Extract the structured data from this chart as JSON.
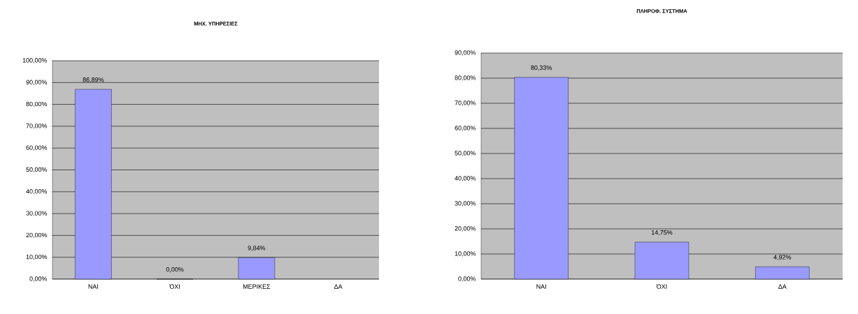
{
  "chart_data": [
    {
      "type": "bar",
      "title": "ΜΗΧ. ΥΠΗΡΕΣΙΕΣ",
      "categories": [
        "ΝΑΙ",
        "ΌΧΙ",
        "ΜΕΡΙΚΕΣ",
        "ΔΑ"
      ],
      "values": [
        86.89,
        0,
        9.84,
        null
      ],
      "value_labels": [
        "86,89%",
        "0,00%",
        "9,84%",
        null
      ],
      "color": "#9999ff",
      "ylim": [
        0,
        100
      ],
      "yticks": [
        {
          "value": 0,
          "label": "0,00%"
        },
        {
          "value": 10,
          "label": "10,00%"
        },
        {
          "value": 20,
          "label": "20,00%"
        },
        {
          "value": 30,
          "label": "30,00%"
        },
        {
          "value": 40,
          "label": "40,00%"
        },
        {
          "value": 50,
          "label": "50,00%"
        },
        {
          "value": 60,
          "label": "60,00%"
        },
        {
          "value": 70,
          "label": "70,00%"
        },
        {
          "value": 80,
          "label": "80,00%"
        },
        {
          "value": 90,
          "label": "90,00%"
        },
        {
          "value": 100,
          "label": "100,00%"
        }
      ],
      "grid": "y"
    },
    {
      "type": "bar",
      "title": "ΠΛΗΡΟΦ. ΣΥΣΤΗΜΑ",
      "categories": [
        "ΝΑΙ",
        "ΌΧΙ",
        "ΔΑ"
      ],
      "values": [
        80.33,
        14.75,
        4.92
      ],
      "value_labels": [
        "80,33%",
        "14,75%",
        "4,92%"
      ],
      "color": "#9999ff",
      "ylim": [
        0,
        90
      ],
      "yticks": [
        {
          "value": 0,
          "label": "0,00%"
        },
        {
          "value": 10,
          "label": "10,00%"
        },
        {
          "value": 20,
          "label": "20,00%"
        },
        {
          "value": 30,
          "label": "30,00%"
        },
        {
          "value": 40,
          "label": "40,00%"
        },
        {
          "value": 50,
          "label": "50,00%"
        },
        {
          "value": 60,
          "label": "60,00%"
        },
        {
          "value": 70,
          "label": "70,00%"
        },
        {
          "value": 80,
          "label": "80,00%"
        },
        {
          "value": 90,
          "label": "90,00%"
        }
      ],
      "grid": "y"
    }
  ]
}
